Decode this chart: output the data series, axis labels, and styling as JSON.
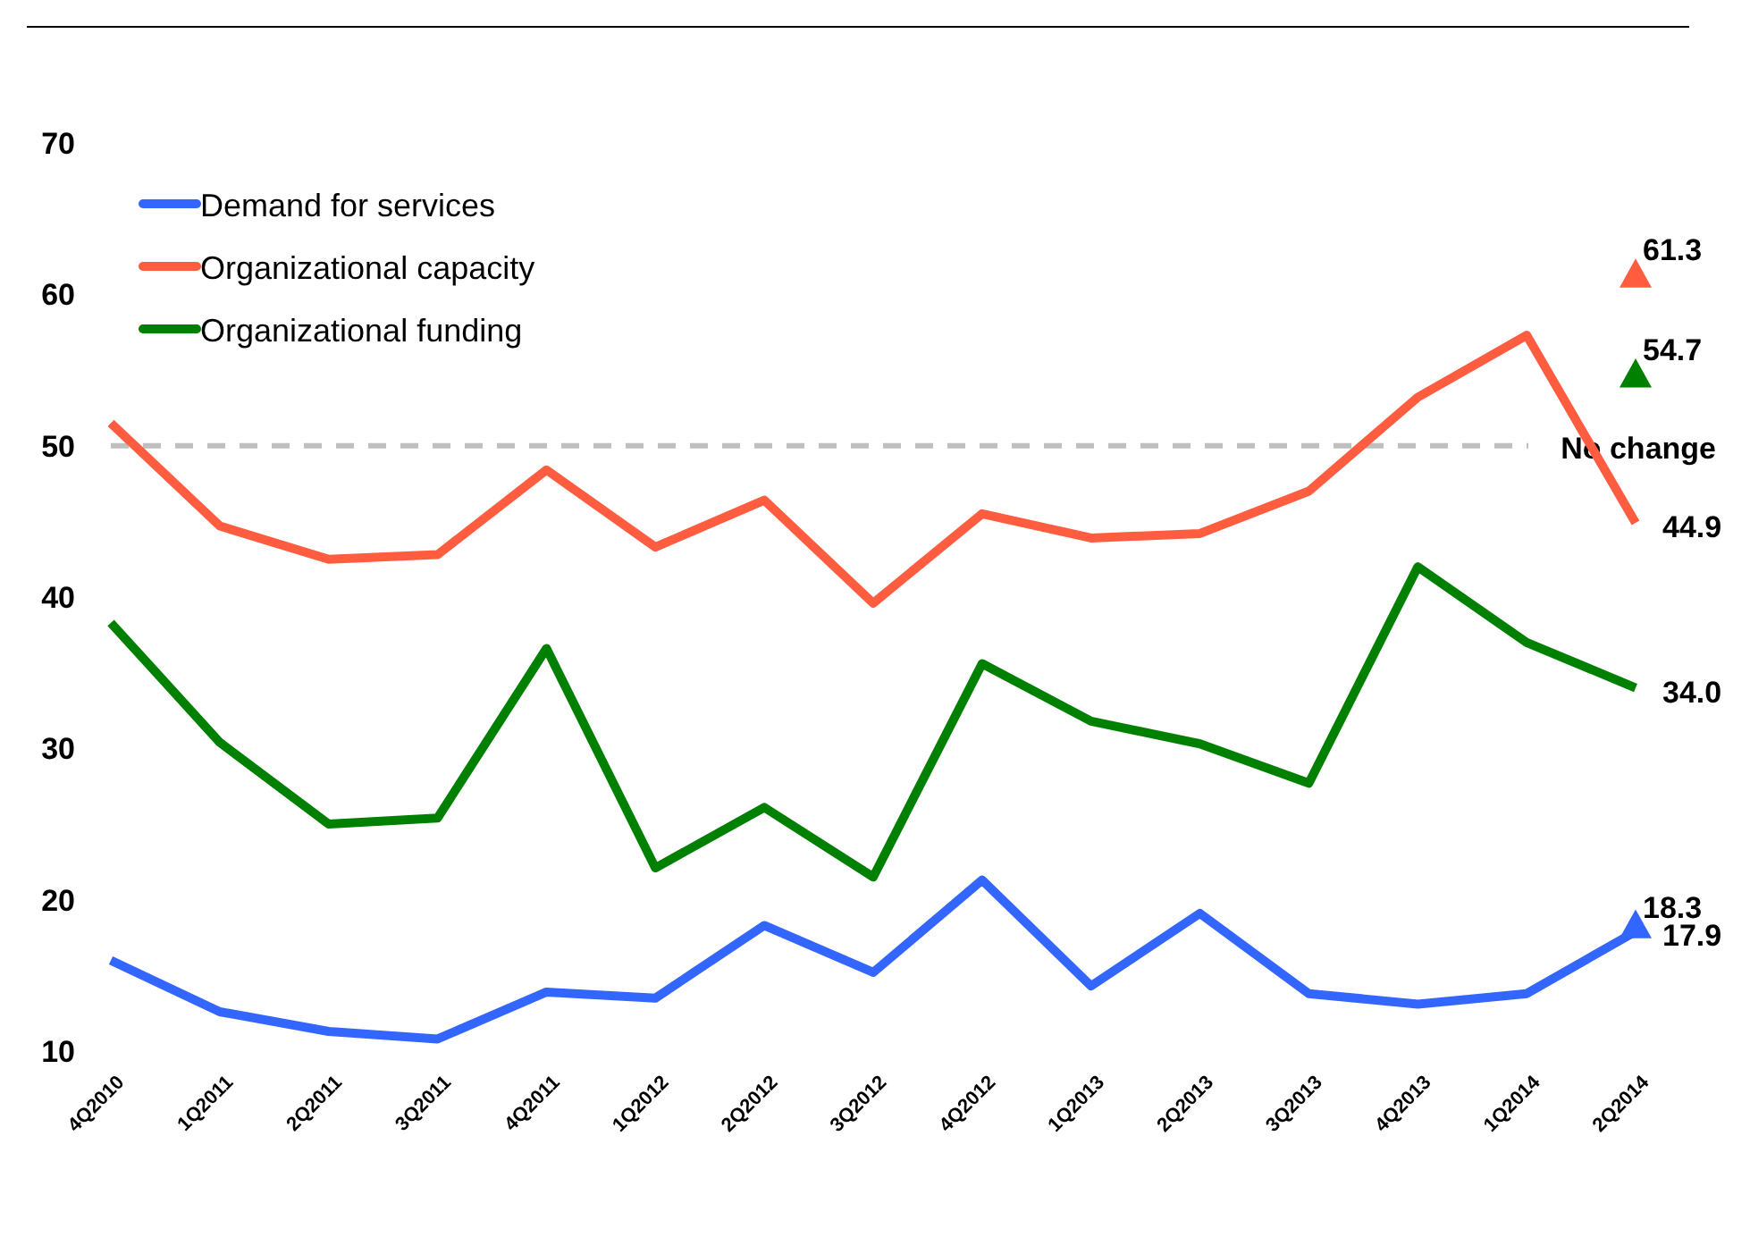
{
  "chart_data": {
    "type": "line",
    "categories": [
      "4Q2010",
      "1Q2011",
      "2Q2011",
      "3Q2011",
      "4Q2011",
      "1Q2012",
      "2Q2012",
      "3Q2012",
      "4Q2012",
      "1Q2013",
      "2Q2013",
      "3Q2013",
      "4Q2013",
      "1Q2014",
      "2Q2014"
    ],
    "series": [
      {
        "name": "Demand for services",
        "color": "#3366ff",
        "values": [
          16.0,
          12.6,
          11.3,
          10.8,
          13.9,
          13.5,
          18.3,
          15.2,
          21.3,
          14.3,
          19.1,
          13.8,
          13.1,
          13.8,
          17.9
        ],
        "value_labels": [
          null,
          null,
          null,
          null,
          null,
          null,
          null,
          null,
          null,
          null,
          null,
          null,
          null,
          null,
          "17.9"
        ]
      },
      {
        "name": "Organizational capacity",
        "color": "#ff5c40",
        "values": [
          51.5,
          44.7,
          42.5,
          42.8,
          48.4,
          43.3,
          46.4,
          39.6,
          45.5,
          43.9,
          44.2,
          47.0,
          53.2,
          57.3,
          44.9
        ],
        "value_labels": [
          null,
          null,
          null,
          null,
          null,
          null,
          null,
          null,
          null,
          null,
          null,
          null,
          null,
          null,
          "44.9"
        ]
      },
      {
        "name": "Organizational funding",
        "color": "#008000",
        "values": [
          38.3,
          30.4,
          25.0,
          25.4,
          36.6,
          22.1,
          26.1,
          21.5,
          35.6,
          31.8,
          30.3,
          27.7,
          42.0,
          37.0,
          34.0
        ],
        "value_labels": [
          null,
          null,
          null,
          null,
          null,
          null,
          null,
          null,
          null,
          null,
          null,
          null,
          null,
          null,
          "34.0"
        ]
      },
      {
        "type": "scatter",
        "marker": "triangle",
        "color": "#3366ff",
        "x": [
          "2Q2014"
        ],
        "values": [
          18.3
        ],
        "value_labels": [
          "18.3"
        ]
      },
      {
        "type": "scatter",
        "marker": "triangle",
        "color": "#ff5c40",
        "x": [
          "2Q2014"
        ],
        "values": [
          61.3
        ],
        "value_labels": [
          "61.3"
        ]
      },
      {
        "type": "scatter",
        "marker": "triangle",
        "color": "#008000",
        "x": [
          "2Q2014"
        ],
        "values": [
          54.7
        ],
        "value_labels": [
          "54.7"
        ]
      }
    ],
    "ylim": [
      10,
      70
    ],
    "yticks": [
      10,
      20,
      30,
      40,
      50,
      60,
      70
    ],
    "grid": false,
    "legend": "top left",
    "marker": "none",
    "line_style": "solid",
    "ref_lines": [
      {
        "axis": "y",
        "value": 50,
        "label": "No change",
        "color": "#bfbfbf",
        "line_style": "dashed"
      }
    ]
  }
}
